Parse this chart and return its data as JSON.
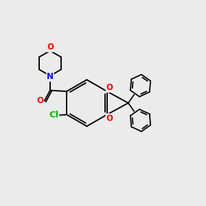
{
  "bg_color": "#ebebeb",
  "bond_color": "#000000",
  "line_width": 1.4,
  "atom_colors": {
    "O": "#ff0000",
    "N": "#0000ff",
    "Cl": "#00bb00",
    "C": "#000000"
  },
  "font_size": 8.5,
  "fig_size": [
    3.0,
    3.0
  ],
  "dpi": 100
}
